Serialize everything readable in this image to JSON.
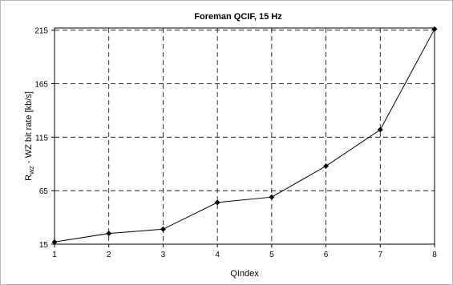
{
  "chart_data": {
    "type": "line",
    "title": "Foreman QCIF, 15 Hz",
    "xlabel": "QIndex",
    "ylabel_main": "R",
    "ylabel_sub": "WZ",
    "ylabel_rest": " - WZ bit rate [kb/s]",
    "x": [
      1,
      2,
      3,
      4,
      5,
      6,
      7,
      8
    ],
    "xticks": [
      "1",
      "2",
      "3",
      "4",
      "5",
      "6",
      "7",
      "8"
    ],
    "yticks": [
      "15",
      "65",
      "115",
      "165",
      "215"
    ],
    "ytick_values": [
      15,
      65,
      115,
      165,
      215
    ],
    "xlim": [
      1,
      8
    ],
    "ylim": [
      15,
      217
    ],
    "grid": true,
    "series": [
      {
        "values": [
          17,
          25,
          29,
          54,
          59,
          88,
          122,
          216
        ],
        "color": "#000000"
      }
    ]
  }
}
